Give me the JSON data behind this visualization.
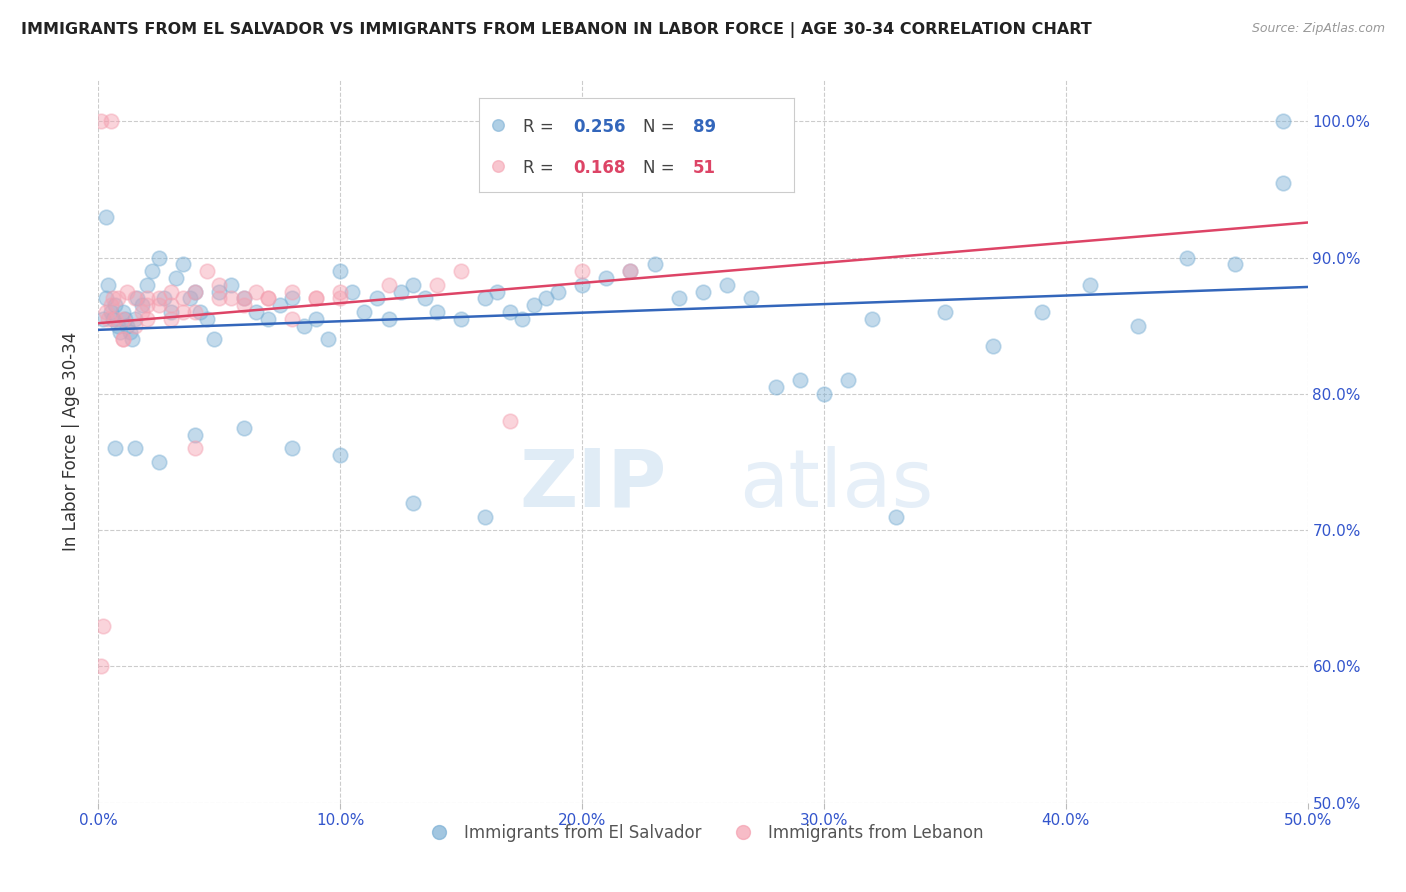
{
  "title": "IMMIGRANTS FROM EL SALVADOR VS IMMIGRANTS FROM LEBANON IN LABOR FORCE | AGE 30-34 CORRELATION CHART",
  "source": "Source: ZipAtlas.com",
  "ylabel": "In Labor Force | Age 30-34",
  "xlim": [
    0.0,
    0.5
  ],
  "ylim": [
    0.5,
    1.03
  ],
  "yticks": [
    0.5,
    0.6,
    0.7,
    0.8,
    0.9,
    1.0
  ],
  "xticks": [
    0.0,
    0.1,
    0.2,
    0.3,
    0.4,
    0.5
  ],
  "blue_R": 0.256,
  "blue_N": 89,
  "pink_R": 0.168,
  "pink_N": 51,
  "blue_color": "#7bafd4",
  "pink_color": "#f4a0b0",
  "blue_line_color": "#3366bb",
  "pink_line_color": "#dd4466",
  "legend_label_blue": "Immigrants from El Salvador",
  "legend_label_pink": "Immigrants from Lebanon",
  "watermark_zip": "ZIP",
  "watermark_atlas": "atlas",
  "blue_x": [
    0.002,
    0.003,
    0.004,
    0.005,
    0.006,
    0.007,
    0.008,
    0.009,
    0.01,
    0.011,
    0.012,
    0.013,
    0.014,
    0.015,
    0.016,
    0.018,
    0.02,
    0.022,
    0.025,
    0.027,
    0.03,
    0.032,
    0.035,
    0.038,
    0.04,
    0.042,
    0.045,
    0.048,
    0.05,
    0.055,
    0.06,
    0.065,
    0.07,
    0.075,
    0.08,
    0.085,
    0.09,
    0.095,
    0.1,
    0.105,
    0.11,
    0.115,
    0.12,
    0.125,
    0.13,
    0.135,
    0.14,
    0.15,
    0.16,
    0.165,
    0.17,
    0.175,
    0.18,
    0.185,
    0.19,
    0.2,
    0.21,
    0.22,
    0.23,
    0.24,
    0.25,
    0.26,
    0.27,
    0.28,
    0.29,
    0.3,
    0.31,
    0.32,
    0.33,
    0.35,
    0.37,
    0.39,
    0.41,
    0.43,
    0.45,
    0.47,
    0.49,
    0.003,
    0.007,
    0.015,
    0.025,
    0.04,
    0.06,
    0.08,
    0.1,
    0.13,
    0.16,
    0.2,
    0.49
  ],
  "blue_y": [
    0.855,
    0.87,
    0.88,
    0.86,
    0.855,
    0.865,
    0.85,
    0.845,
    0.86,
    0.855,
    0.85,
    0.845,
    0.84,
    0.855,
    0.87,
    0.865,
    0.88,
    0.89,
    0.9,
    0.87,
    0.86,
    0.885,
    0.895,
    0.87,
    0.875,
    0.86,
    0.855,
    0.84,
    0.875,
    0.88,
    0.87,
    0.86,
    0.855,
    0.865,
    0.87,
    0.85,
    0.855,
    0.84,
    0.89,
    0.875,
    0.86,
    0.87,
    0.855,
    0.875,
    0.88,
    0.87,
    0.86,
    0.855,
    0.87,
    0.875,
    0.86,
    0.855,
    0.865,
    0.87,
    0.875,
    0.88,
    0.885,
    0.89,
    0.895,
    0.87,
    0.875,
    0.88,
    0.87,
    0.805,
    0.81,
    0.8,
    0.81,
    0.855,
    0.71,
    0.86,
    0.835,
    0.86,
    0.88,
    0.85,
    0.9,
    0.895,
    0.955,
    0.93,
    0.76,
    0.76,
    0.75,
    0.77,
    0.775,
    0.76,
    0.755,
    0.72,
    0.71,
    1.0,
    1.0
  ],
  "pink_x": [
    0.001,
    0.002,
    0.003,
    0.004,
    0.005,
    0.006,
    0.007,
    0.008,
    0.01,
    0.012,
    0.015,
    0.018,
    0.02,
    0.025,
    0.03,
    0.035,
    0.04,
    0.045,
    0.05,
    0.055,
    0.06,
    0.065,
    0.07,
    0.08,
    0.09,
    0.1,
    0.12,
    0.15,
    0.17,
    0.2,
    0.22,
    0.01,
    0.015,
    0.02,
    0.025,
    0.03,
    0.035,
    0.04,
    0.05,
    0.07,
    0.09,
    0.01,
    0.02,
    0.03,
    0.04,
    0.06,
    0.08,
    0.1,
    0.14,
    0.001,
    0.005
  ],
  "pink_y": [
    0.6,
    0.63,
    0.86,
    0.855,
    0.865,
    0.87,
    0.855,
    0.87,
    0.84,
    0.875,
    0.87,
    0.86,
    0.855,
    0.865,
    0.875,
    0.87,
    0.86,
    0.89,
    0.88,
    0.87,
    0.865,
    0.875,
    0.87,
    0.855,
    0.87,
    0.875,
    0.88,
    0.89,
    0.78,
    0.89,
    0.89,
    0.855,
    0.85,
    0.865,
    0.87,
    0.855,
    0.86,
    0.875,
    0.87,
    0.87,
    0.87,
    0.84,
    0.87,
    0.865,
    0.76,
    0.87,
    0.875,
    0.87,
    0.88,
    1.0,
    1.0
  ]
}
